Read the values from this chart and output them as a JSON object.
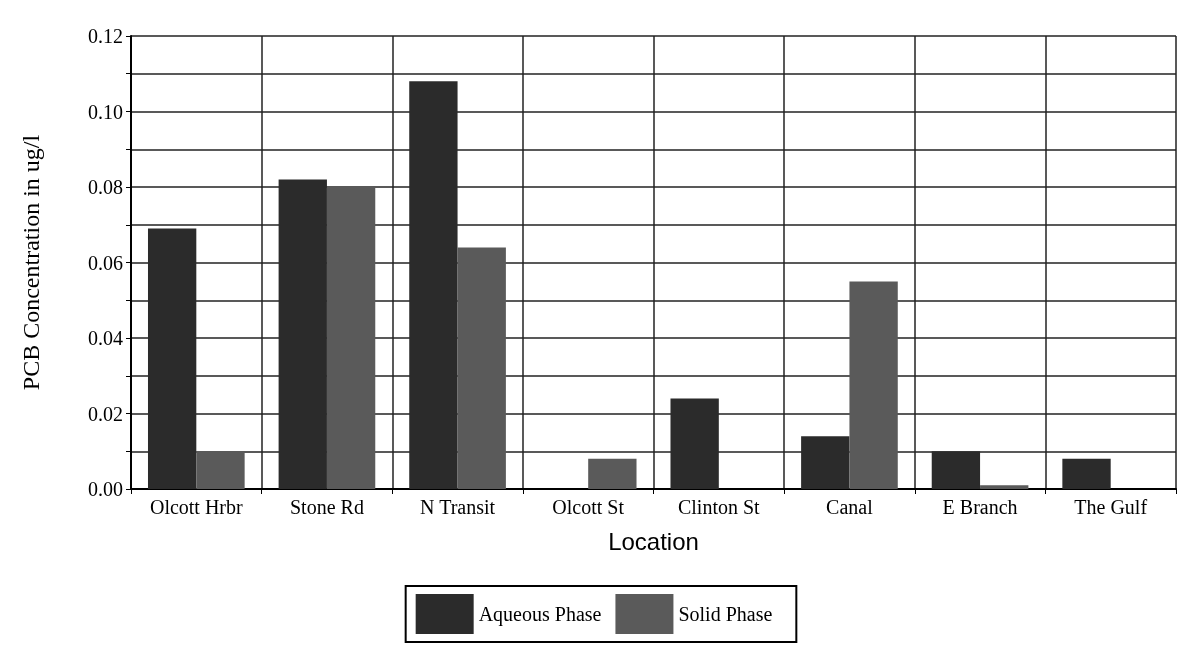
{
  "chart_data": {
    "type": "bar",
    "xlabel": "Location",
    "ylabel": "PCB Concentration in ug/l",
    "categories": [
      "Olcott Hrbr",
      "Stone Rd",
      "N Transit",
      "Olcott St",
      "Clinton St",
      "Canal",
      "E Branch",
      "The Gulf"
    ],
    "series": [
      {
        "name": "Aqueous Phase",
        "color": "#2b2b2b",
        "values": [
          0.069,
          0.082,
          0.108,
          0,
          0.024,
          0.014,
          0.01,
          0.008
        ]
      },
      {
        "name": "Solid Phase",
        "color": "#5a5a5a",
        "values": [
          0.01,
          0.08,
          0.064,
          0.008,
          0,
          0.055,
          0.001,
          0
        ]
      }
    ],
    "ylim": [
      0,
      0.12
    ],
    "yticks": [
      {
        "value": 0,
        "label": "0.00"
      },
      {
        "value": 0.01,
        "label": null
      },
      {
        "value": 0.02,
        "label": "0.02"
      },
      {
        "value": 0.03,
        "label": null
      },
      {
        "value": 0.04,
        "label": "0.04"
      },
      {
        "value": 0.05,
        "label": null
      },
      {
        "value": 0.06,
        "label": "0.06"
      },
      {
        "value": 0.07,
        "label": null
      },
      {
        "value": 0.08,
        "label": "0.08"
      },
      {
        "value": 0.09,
        "label": null
      },
      {
        "value": 0.1,
        "label": "0.10"
      },
      {
        "value": 0.11,
        "label": null
      },
      {
        "value": 0.12,
        "label": "0.12"
      }
    ],
    "grid": true,
    "legend": "bottom"
  }
}
